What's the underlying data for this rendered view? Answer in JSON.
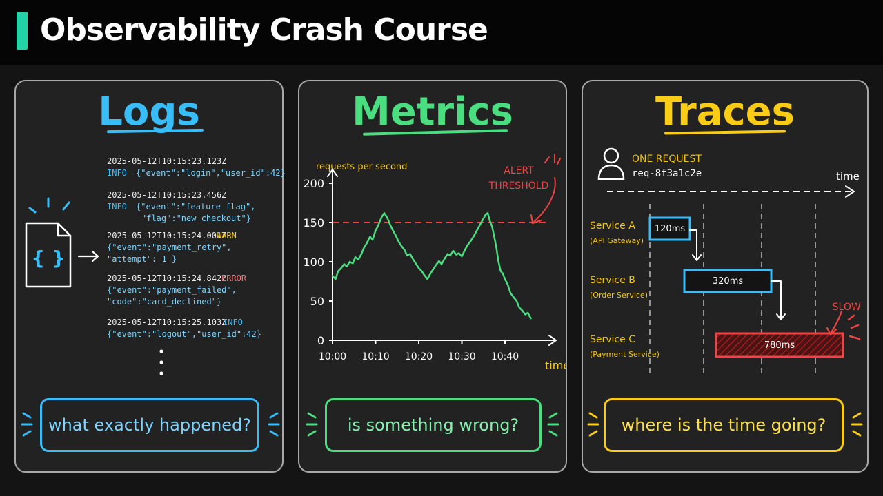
{
  "header": {
    "title": "Observability Crash Course",
    "accent_color": "#22d3a6"
  },
  "panels": {
    "logs": {
      "title": "Logs",
      "color": "#38bdf8",
      "icon": "json-file-icon",
      "entries": [
        {
          "timestamp": "2025-05-12T10:15:23.123Z",
          "level": "INFO",
          "lines": [
            "{\"event\":\"login\",\"user_id\":42}"
          ]
        },
        {
          "timestamp": "2025-05-12T10:15:23.456Z",
          "level": "INFO",
          "lines": [
            "{\"event\":\"feature_flag\",",
            "\"flag\":\"new_checkout\"}"
          ]
        },
        {
          "timestamp": "2025-05-12T10:15:24.001Z",
          "level": "WARN",
          "lines": [
            "{\"event\":\"payment_retry\",",
            "\"attempt\": 1 }"
          ]
        },
        {
          "timestamp": "2025-05-12T10:15:24.842Z",
          "level": "ERROR",
          "lines": [
            "{\"event\":\"payment_failed\",",
            "\"code\":\"card_declined\"}"
          ]
        },
        {
          "timestamp": "2025-05-12T10:15:25.103Z",
          "level": "INFO",
          "lines": [
            "{\"event\":\"logout\",\"user_id\":42}"
          ]
        }
      ],
      "question": "what exactly happened?"
    },
    "metrics": {
      "title": "Metrics",
      "color": "#4ade80",
      "question": "is something wrong?"
    },
    "traces": {
      "title": "Traces",
      "color": "#facc15",
      "request_label": "ONE REQUEST",
      "request_id": "req-8f3a1c2e",
      "time_label": "time",
      "services": [
        {
          "name": "Service A",
          "subtitle": "(API Gateway)",
          "duration": "120ms"
        },
        {
          "name": "Service B",
          "subtitle": "(Order Service)",
          "duration": "320ms"
        },
        {
          "name": "Service C",
          "subtitle": "(Payment Service)",
          "duration": "780ms"
        }
      ],
      "slow_label": "SLOW!",
      "question": "where is the time going?"
    }
  },
  "chart_data": {
    "type": "line",
    "ylabel": "requests per second",
    "xlabel": "time",
    "x_ticks": [
      "10:00",
      "10:10",
      "10:20",
      "10:30",
      "10:40"
    ],
    "y_ticks": [
      0,
      50,
      100,
      150,
      200
    ],
    "ylim": [
      0,
      200
    ],
    "xlim": [
      0,
      48
    ],
    "threshold": {
      "value": 150,
      "label": [
        "ALERT",
        "THRESHOLD"
      ],
      "color": "#ef4444"
    },
    "series": [
      {
        "color": "#4ade80",
        "x": [
          0,
          0.7,
          1.3,
          2,
          2.7,
          3.3,
          4,
          4.7,
          5.3,
          6,
          6.7,
          7.3,
          8,
          8.7,
          9.3,
          10,
          10.5,
          11,
          11.5,
          12,
          12.7,
          13.3,
          14,
          14.7,
          15.3,
          16,
          16.7,
          17.3,
          18,
          18.7,
          19.3,
          20,
          20.7,
          21.3,
          22,
          22.7,
          23.3,
          24,
          24.7,
          25.3,
          26,
          26.7,
          27.3,
          28,
          28.7,
          29.3,
          30,
          30.7,
          31.3,
          32,
          32.7,
          33.3,
          34,
          34.5,
          35,
          35.5,
          36,
          36.5,
          37,
          37.5,
          38,
          38.5,
          39,
          39.5,
          40,
          40.7,
          41.3,
          42,
          42.7,
          43.3,
          44,
          44.7,
          45.3,
          46
        ],
        "values": [
          82,
          78,
          88,
          92,
          97,
          94,
          100,
          98,
          106,
          103,
          110,
          118,
          124,
          132,
          128,
          140,
          145,
          152,
          158,
          162,
          156,
          148,
          140,
          133,
          126,
          120,
          115,
          108,
          110,
          103,
          98,
          92,
          88,
          83,
          78,
          85,
          90,
          96,
          101,
          97,
          104,
          110,
          108,
          114,
          109,
          111,
          107,
          115,
          121,
          126,
          132,
          138,
          145,
          150,
          155,
          160,
          162,
          152,
          145,
          132,
          118,
          100,
          88,
          85,
          78,
          70,
          60,
          55,
          50,
          42,
          38,
          33,
          35,
          28
        ]
      }
    ]
  }
}
